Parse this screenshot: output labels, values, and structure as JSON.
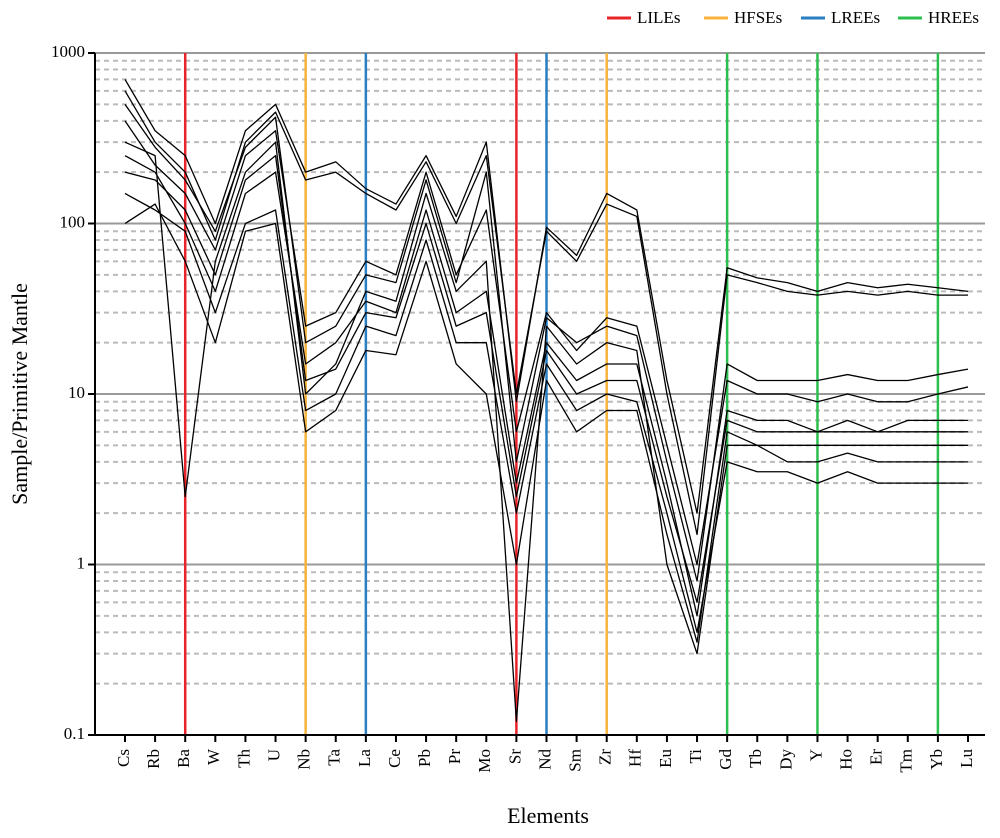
{
  "chart_data": {
    "type": "spider",
    "x_label": "Elements",
    "y_label": "Sample/Primitive Mantle",
    "categories": [
      "Cs",
      "Rb",
      "Ba",
      "W",
      "Th",
      "U",
      "Nb",
      "Ta",
      "La",
      "Ce",
      "Pb",
      "Pr",
      "Mo",
      "Sr",
      "Nd",
      "Sm",
      "Zr",
      "Hf",
      "Eu",
      "Ti",
      "Gd",
      "Tb",
      "Dy",
      "Y",
      "Ho",
      "Er",
      "Tm",
      "Yb",
      "Lu"
    ],
    "log_scale": true,
    "ylim": [
      0.1,
      1000
    ],
    "yticks": [
      0.1,
      1,
      10,
      100,
      1000
    ],
    "grid": true,
    "legend_position": "top-right",
    "line_color": "#000000",
    "groups": [
      {
        "name": "LILEs",
        "color": "#e8242a",
        "elements": [
          "Ba",
          "Sr"
        ]
      },
      {
        "name": "HFSEs",
        "color": "#f7b33b",
        "elements": [
          "Nb",
          "Zr"
        ]
      },
      {
        "name": "LREEs",
        "color": "#2a7ec2",
        "elements": [
          "La",
          "Nd"
        ]
      },
      {
        "name": "HREEs",
        "color": "#2dbf4e",
        "elements": [
          "Gd",
          "Y",
          "Yb"
        ]
      }
    ],
    "samples": [
      [
        600,
        300,
        200,
        80,
        300,
        450,
        180,
        200,
        150,
        120,
        230,
        100,
        250,
        10,
        90,
        60,
        130,
        110,
        10,
        1.5,
        50,
        45,
        40,
        38,
        40,
        38,
        40,
        38,
        38
      ],
      [
        700,
        350,
        250,
        100,
        350,
        500,
        200,
        230,
        160,
        130,
        250,
        110,
        300,
        9,
        95,
        65,
        150,
        120,
        12,
        2,
        55,
        48,
        45,
        40,
        45,
        42,
        44,
        42,
        40
      ],
      [
        250,
        200,
        100,
        40,
        150,
        200,
        15,
        20,
        35,
        30,
        120,
        30,
        40,
        3,
        20,
        12,
        15,
        15,
        3,
        0.5,
        8,
        7,
        7,
        6,
        7,
        6,
        7,
        7,
        7
      ],
      [
        300,
        250,
        2.5,
        60,
        200,
        300,
        10,
        15,
        40,
        35,
        150,
        40,
        60,
        0.12,
        25,
        15,
        20,
        18,
        1,
        0.3,
        5,
        5,
        4,
        4,
        4.5,
        4,
        4,
        4,
        4
      ],
      [
        150,
        120,
        90,
        30,
        100,
        120,
        8,
        10,
        25,
        22,
        80,
        20,
        20,
        2,
        15,
        8,
        10,
        9,
        2,
        0.4,
        4,
        3.5,
        3.5,
        3,
        3.5,
        3,
        3,
        3,
        3
      ],
      [
        400,
        220,
        150,
        70,
        250,
        350,
        25,
        30,
        60,
        50,
        200,
        50,
        120,
        6,
        30,
        18,
        28,
        25,
        5,
        1,
        12,
        10,
        10,
        9,
        10,
        9,
        9,
        10,
        11
      ],
      [
        100,
        130,
        60,
        20,
        90,
        100,
        6,
        8,
        18,
        17,
        60,
        15,
        10,
        1,
        12,
        6,
        8,
        8,
        1.5,
        0.35,
        6,
        5,
        5,
        5,
        5,
        5,
        5,
        5,
        5
      ],
      [
        500,
        280,
        180,
        90,
        280,
        420,
        20,
        25,
        50,
        45,
        180,
        45,
        200,
        4,
        28,
        20,
        25,
        22,
        4,
        0.8,
        15,
        12,
        12,
        12,
        13,
        12,
        12,
        13,
        14
      ],
      [
        200,
        180,
        120,
        50,
        180,
        250,
        12,
        14,
        30,
        28,
        100,
        25,
        30,
        2.5,
        18,
        10,
        12,
        12,
        2.5,
        0.6,
        7,
        6,
        6,
        6,
        6,
        6,
        6,
        6,
        6
      ]
    ]
  }
}
